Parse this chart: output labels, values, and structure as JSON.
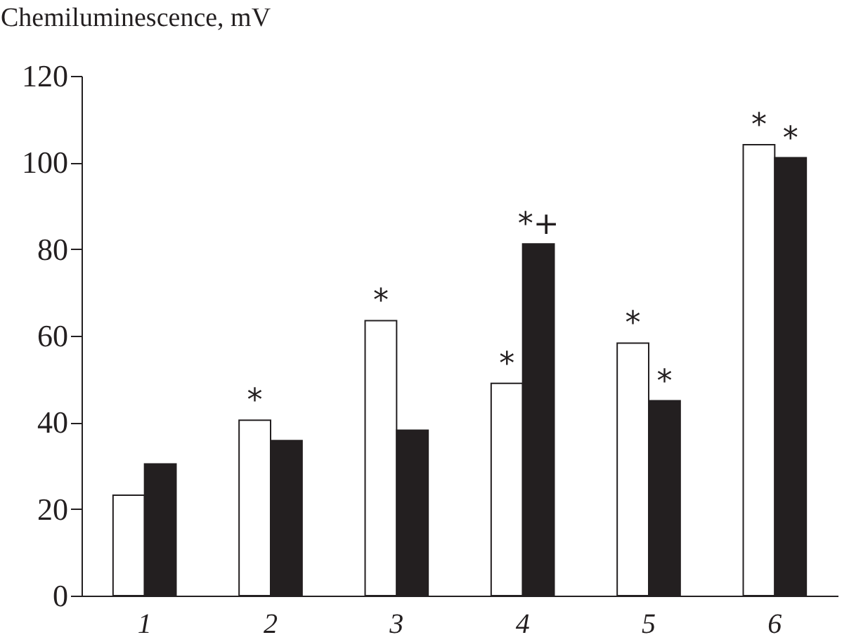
{
  "chart_data": {
    "type": "bar",
    "ylabel": "Chemiluminescence, mV",
    "categories": [
      "1",
      "2",
      "3",
      "4",
      "5",
      "6"
    ],
    "series": [
      {
        "color": "#ffffff",
        "values": [
          23.2,
          40.5,
          63.5,
          49,
          58.3,
          104.1
        ]
      },
      {
        "color": "#231f20",
        "values": [
          30.4,
          35.8,
          38.2,
          81.2,
          45,
          101.1
        ]
      }
    ],
    "ylim": [
      0,
      120
    ],
    "yticks": [
      0,
      20,
      40,
      60,
      80,
      100,
      120
    ],
    "grid": false,
    "legend": false,
    "annotations": [
      {
        "text": "*",
        "x": "2",
        "y": 40.5
      },
      {
        "text": "*",
        "x": "3",
        "y": 63.5
      },
      {
        "text": "*",
        "x": "4",
        "y": 49
      },
      {
        "text": "*+",
        "x": "4",
        "y": 81.2
      },
      {
        "text": "*",
        "x": "5",
        "y": 58.3
      },
      {
        "text": "*",
        "x": "5",
        "y": 45
      },
      {
        "text": "*",
        "x": "6",
        "y": 104.1
      },
      {
        "text": "*",
        "x": "6",
        "y": 101.1
      }
    ]
  }
}
